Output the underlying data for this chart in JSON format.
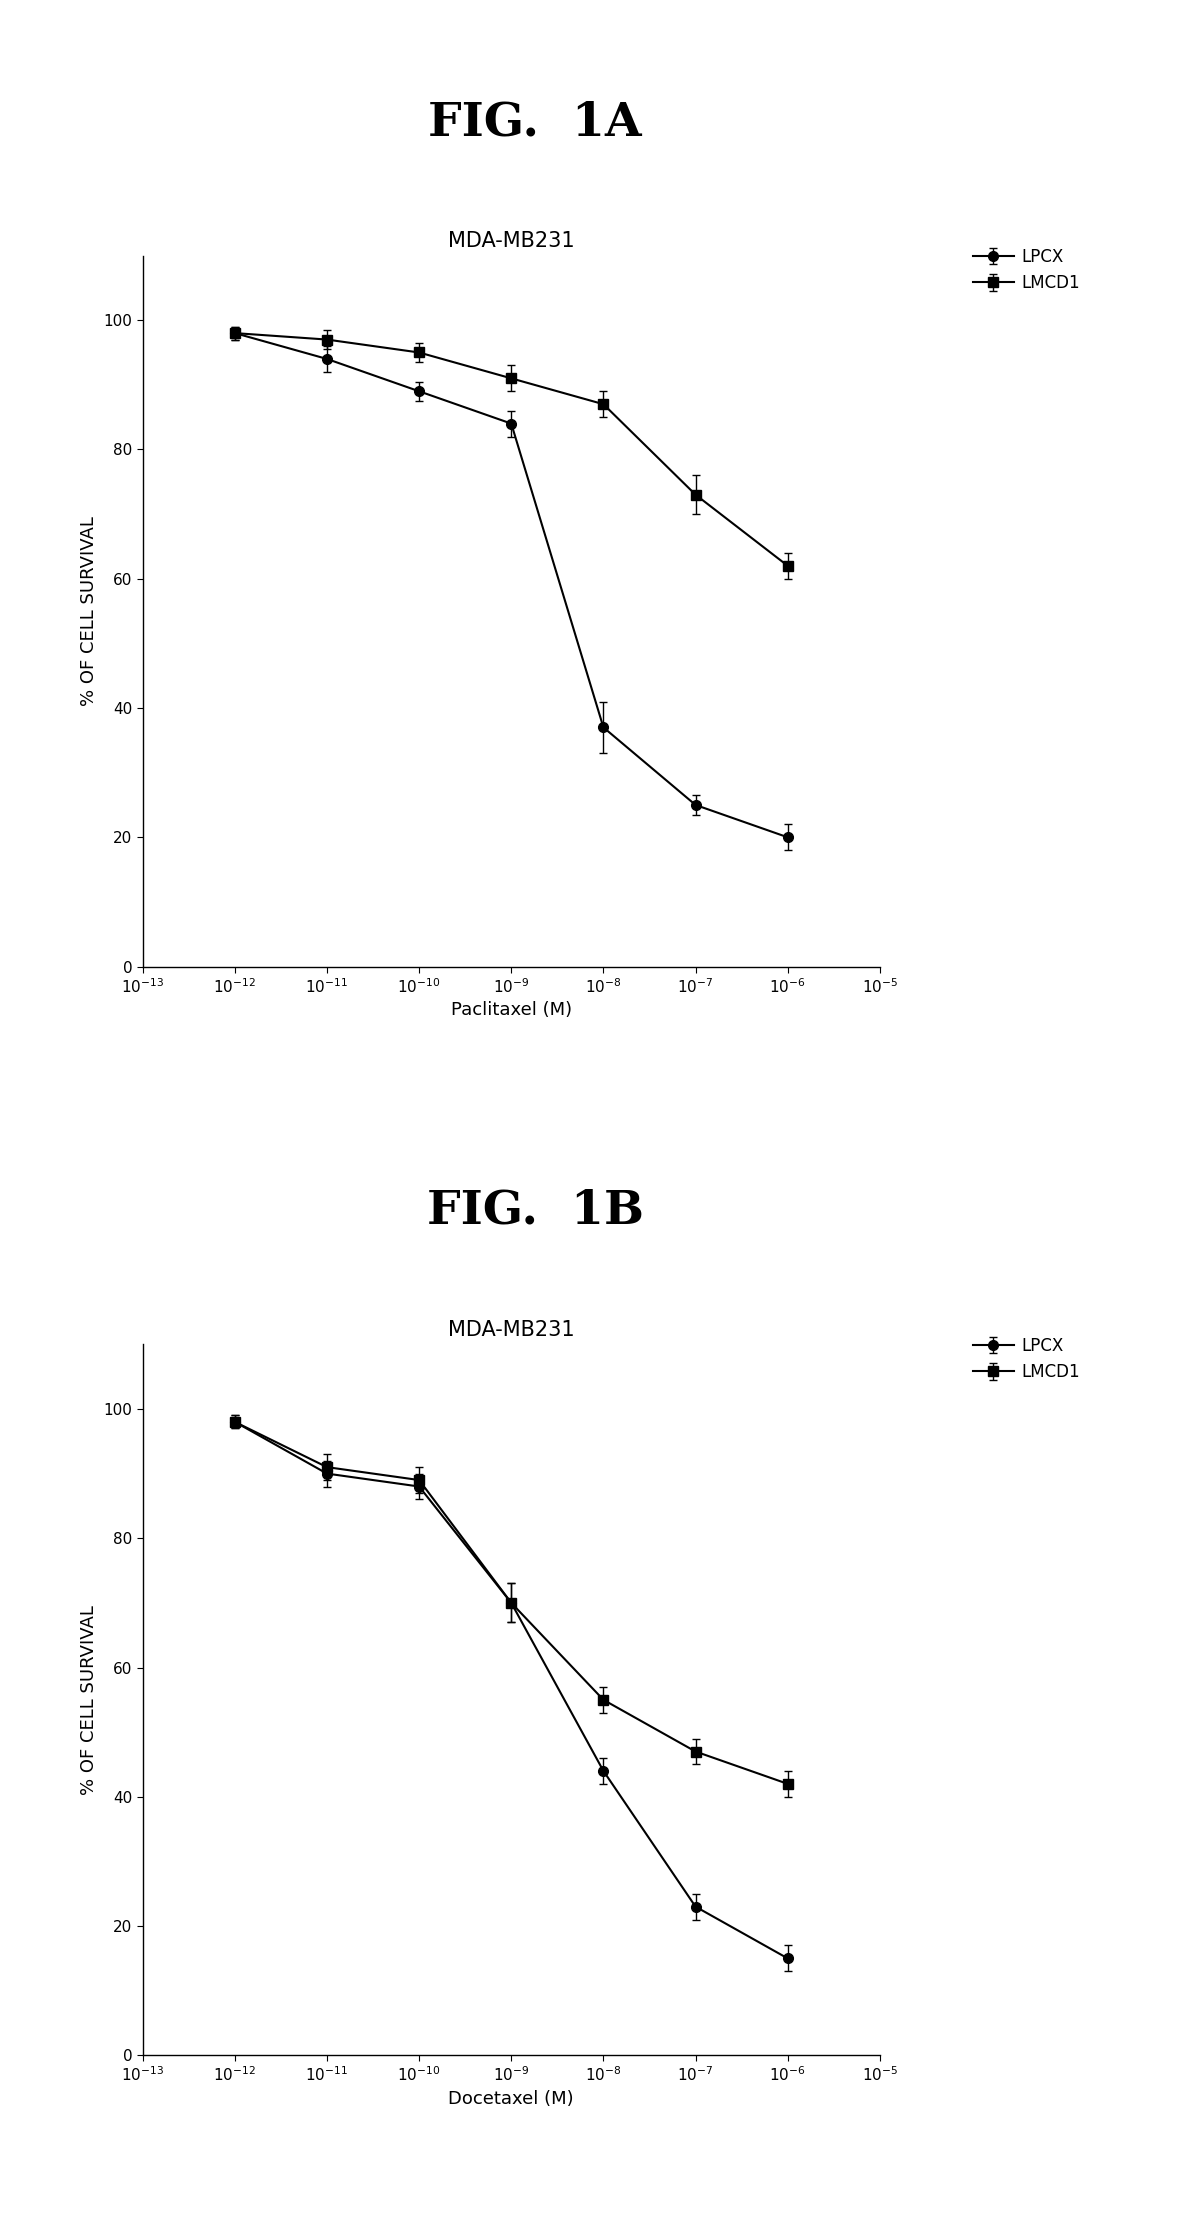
{
  "fig1A": {
    "title_fig": "FIG.  1A",
    "subtitle": "MDA-MB231",
    "xlabel": "Paclitaxel (M)",
    "ylabel": "% OF CELL SURVIVAL",
    "lpcx_x": [
      1e-12,
      1e-11,
      1e-10,
      1e-09,
      1e-08,
      1e-07,
      1e-06
    ],
    "lpcx_y": [
      98,
      94,
      89,
      84,
      37,
      25,
      20
    ],
    "lpcx_yerr": [
      1,
      2,
      1.5,
      2,
      4,
      1.5,
      2
    ],
    "lmcd1_x": [
      1e-12,
      1e-11,
      1e-10,
      1e-09,
      1e-08,
      1e-07,
      1e-06
    ],
    "lmcd1_y": [
      98,
      97,
      95,
      91,
      87,
      73,
      62
    ],
    "lmcd1_yerr": [
      1,
      1.5,
      1.5,
      2,
      2,
      3,
      2
    ],
    "xlim_log": [
      -13,
      -5
    ],
    "ylim": [
      0,
      110
    ],
    "yticks": [
      0,
      20,
      40,
      60,
      80,
      100
    ],
    "xtick_positions": [
      1e-13,
      1e-12,
      1e-11,
      1e-10,
      1e-09,
      1e-08,
      1e-07,
      1e-06,
      1e-05
    ],
    "xtick_labels": [
      "10$^{-13}$",
      "10$^{-12}$",
      "10$^{-11}$",
      "10$^{-10}$",
      "10$^{-9}$",
      "10$^{-8}$",
      "10$^{-7}$",
      "10$^{-6}$",
      "10$^{-5}$"
    ],
    "lpcx_label": "LPCX",
    "lmcd1_label": "LMCD1"
  },
  "fig1B": {
    "title_fig": "FIG.  1B",
    "subtitle": "MDA-MB231",
    "xlabel": "Docetaxel (M)",
    "ylabel": "% OF CELL SURVIVAL",
    "lpcx_x": [
      1e-12,
      1e-11,
      1e-10,
      1e-09,
      1e-08,
      1e-07,
      1e-06
    ],
    "lpcx_y": [
      98,
      90,
      88,
      70,
      44,
      23,
      15
    ],
    "lpcx_yerr": [
      1,
      2,
      2,
      3,
      2,
      2,
      2
    ],
    "lmcd1_x": [
      1e-12,
      1e-11,
      1e-10,
      1e-09,
      1e-08,
      1e-07,
      1e-06
    ],
    "lmcd1_y": [
      98,
      91,
      89,
      70,
      55,
      47,
      42
    ],
    "lmcd1_yerr": [
      1,
      2,
      2,
      3,
      2,
      2,
      2
    ],
    "xlim_log": [
      -13,
      -5
    ],
    "ylim": [
      0,
      110
    ],
    "yticks": [
      0,
      20,
      40,
      60,
      80,
      100
    ],
    "xtick_positions": [
      1e-13,
      1e-12,
      1e-11,
      1e-10,
      1e-09,
      1e-08,
      1e-07,
      1e-06,
      1e-05
    ],
    "xtick_labels": [
      "10$^{-13}$",
      "10$^{-12}$",
      "10$^{-11}$",
      "10$^{-10}$",
      "10$^{-9}$",
      "10$^{-8}$",
      "10$^{-7}$",
      "10$^{-6}$",
      "10$^{-5}$"
    ],
    "lpcx_label": "LPCX",
    "lmcd1_label": "LMCD1"
  },
  "line_color": "#000000",
  "background_color": "#ffffff",
  "fig_title_fontsize": 34,
  "subtitle_fontsize": 15,
  "axis_label_fontsize": 13,
  "tick_fontsize": 11,
  "legend_fontsize": 12,
  "marker_size": 7,
  "line_width": 1.5
}
